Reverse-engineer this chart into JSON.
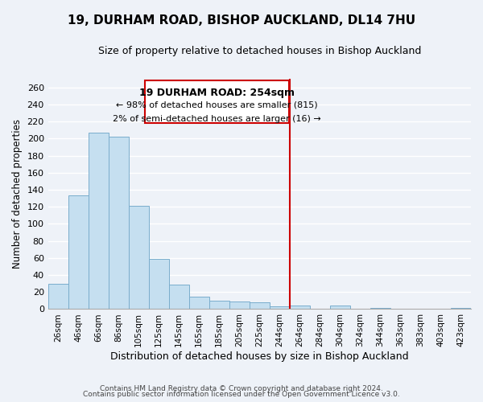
{
  "title": "19, DURHAM ROAD, BISHOP AUCKLAND, DL14 7HU",
  "subtitle": "Size of property relative to detached houses in Bishop Auckland",
  "xlabel": "Distribution of detached houses by size in Bishop Auckland",
  "ylabel": "Number of detached properties",
  "bar_labels": [
    "26sqm",
    "46sqm",
    "66sqm",
    "86sqm",
    "105sqm",
    "125sqm",
    "145sqm",
    "165sqm",
    "185sqm",
    "205sqm",
    "225sqm",
    "244sqm",
    "264sqm",
    "284sqm",
    "304sqm",
    "324sqm",
    "344sqm",
    "363sqm",
    "383sqm",
    "403sqm",
    "423sqm"
  ],
  "bar_heights": [
    30,
    133,
    207,
    202,
    121,
    59,
    29,
    15,
    10,
    9,
    8,
    3,
    4,
    0,
    4,
    0,
    1,
    0,
    0,
    0,
    1
  ],
  "bar_color": "#c5dff0",
  "bar_edge_color": "#7aadcc",
  "vline_color": "#cc0000",
  "ylim": [
    0,
    270
  ],
  "yticks": [
    0,
    20,
    40,
    60,
    80,
    100,
    120,
    140,
    160,
    180,
    200,
    220,
    240,
    260
  ],
  "annotation_title": "19 DURHAM ROAD: 254sqm",
  "annotation_line1": "← 98% of detached houses are smaller (815)",
  "annotation_line2": "2% of semi-detached houses are larger (16) →",
  "footer1": "Contains HM Land Registry data © Crown copyright and database right 2024.",
  "footer2": "Contains public sector information licensed under the Open Government Licence v3.0.",
  "bg_color": "#eef2f8",
  "grid_color": "#ffffff"
}
